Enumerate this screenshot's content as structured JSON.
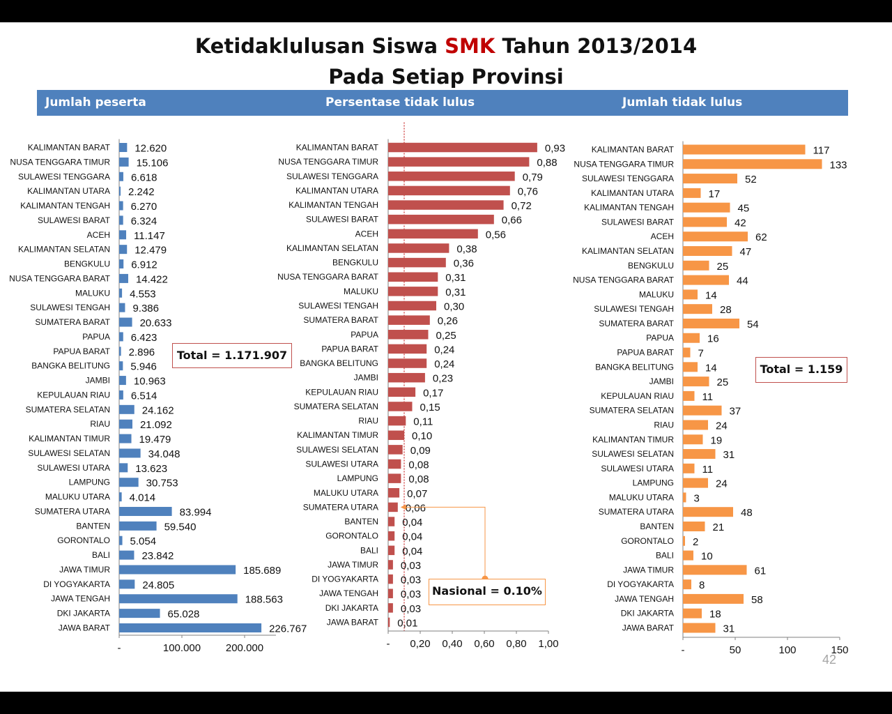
{
  "title": {
    "line1_pre": "Ketidaklulusan Siswa ",
    "line1_accent": "SMK",
    "line1_post": " Tahun 2013/2014",
    "line2": "Pada Setiap Provinsi"
  },
  "headers": {
    "col1": "Jumlah peserta",
    "col2": "Persentase tidak lulus",
    "col3": "Jumlah tidak lulus"
  },
  "boxes": {
    "total_peserta": "Total =  1.171.907",
    "nasional": "Nasional = 0.10%",
    "total_tidak_lulus": "Total = 1.159"
  },
  "page_number": "42",
  "colors": {
    "blue": "#4f81bd",
    "red": "#c0504d",
    "orange": "#f79646",
    "header": "#4f81bd",
    "accent": "#c00000",
    "nasional_line": "#c00000",
    "callout": "#f79646"
  },
  "chart_data": [
    {
      "type": "bar",
      "orientation": "horizontal",
      "title": "Jumlah peserta",
      "categories": [
        "KALIMANTAN BARAT",
        "NUSA TENGGARA TIMUR",
        "SULAWESI TENGGARA",
        "KALIMANTAN UTARA",
        "KALIMANTAN TENGAH",
        "SULAWESI BARAT",
        "ACEH",
        "KALIMANTAN SELATAN",
        "BENGKULU",
        "NUSA TENGGARA BARAT",
        "MALUKU",
        "SULAWESI TENGAH",
        "SUMATERA BARAT",
        "PAPUA",
        "PAPUA BARAT",
        "BANGKA BELITUNG",
        "JAMBI",
        "KEPULAUAN RIAU",
        "SUMATERA SELATAN",
        "RIAU",
        "KALIMANTAN TIMUR",
        "SULAWESI SELATAN",
        "SULAWESI UTARA",
        "LAMPUNG",
        "MALUKU UTARA",
        "SUMATERA UTARA",
        "BANTEN",
        "GORONTALO",
        "BALI",
        "JAWA TIMUR",
        "DI YOGYAKARTA",
        "JAWA TENGAH",
        "DKI JAKARTA",
        "JAWA BARAT"
      ],
      "values": [
        12620,
        15106,
        6618,
        2242,
        6270,
        6324,
        11147,
        12479,
        6912,
        14422,
        4553,
        9386,
        20633,
        6423,
        2896,
        5946,
        10963,
        6514,
        24162,
        21092,
        19479,
        34048,
        13623,
        30753,
        4014,
        83994,
        59540,
        5054,
        23842,
        185689,
        24805,
        188563,
        65028,
        226767
      ],
      "labels": [
        "12.620",
        "15.106",
        "6.618",
        "2.242",
        "6.270",
        "6.324",
        "11.147",
        "12.479",
        "6.912",
        "14.422",
        "4.553",
        "9.386",
        "20.633",
        "6.423",
        "2.896",
        "5.946",
        "10.963",
        "6.514",
        "24.162",
        "21.092",
        "19.479",
        "34.048",
        "13.623",
        "30.753",
        "4.014",
        "83.994",
        "59.540",
        "5.054",
        "23.842",
        "185.689",
        "24.805",
        "188.563",
        "65.028",
        "226.767"
      ],
      "xlim": [
        0,
        250000
      ],
      "ticks": [
        0,
        100000,
        200000
      ],
      "tick_labels": [
        "-",
        "100.000",
        "200.000"
      ]
    },
    {
      "type": "bar",
      "orientation": "horizontal",
      "title": "Persentase tidak lulus",
      "categories": [
        "KALIMANTAN BARAT",
        "NUSA TENGGARA TIMUR",
        "SULAWESI TENGGARA",
        "KALIMANTAN UTARA",
        "KALIMANTAN TENGAH",
        "SULAWESI BARAT",
        "ACEH",
        "KALIMANTAN SELATAN",
        "BENGKULU",
        "NUSA TENGGARA BARAT",
        "MALUKU",
        "SULAWESI TENGAH",
        "SUMATERA BARAT",
        "PAPUA",
        "PAPUA BARAT",
        "BANGKA BELITUNG",
        "JAMBI",
        "KEPULAUAN RIAU",
        "SUMATERA SELATAN",
        "RIAU",
        "KALIMANTAN TIMUR",
        "SULAWESI SELATAN",
        "SULAWESI UTARA",
        "LAMPUNG",
        "MALUKU UTARA",
        "SUMATERA UTARA",
        "BANTEN",
        "GORONTALO",
        "BALI",
        "JAWA TIMUR",
        "DI YOGYAKARTA",
        "JAWA TENGAH",
        "DKI JAKARTA",
        "JAWA BARAT"
      ],
      "values": [
        0.93,
        0.88,
        0.79,
        0.76,
        0.72,
        0.66,
        0.56,
        0.38,
        0.36,
        0.31,
        0.31,
        0.3,
        0.26,
        0.25,
        0.24,
        0.24,
        0.23,
        0.17,
        0.15,
        0.11,
        0.1,
        0.09,
        0.08,
        0.08,
        0.07,
        0.06,
        0.04,
        0.04,
        0.04,
        0.03,
        0.03,
        0.03,
        0.03,
        0.01
      ],
      "labels": [
        "0,93",
        "0,88",
        "0,79",
        "0,76",
        "0,72",
        "0,66",
        "0,56",
        "0,38",
        "0,36",
        "0,31",
        "0,31",
        "0,30",
        "0,26",
        "0,25",
        "0,24",
        "0,24",
        "0,23",
        "0,17",
        "0,15",
        "0,11",
        "0,10",
        "0,09",
        "0,08",
        "0,08",
        "0,07",
        "0,06",
        "0,04",
        "0,04",
        "0,04",
        "0,03",
        "0,03",
        "0,03",
        "0,03",
        "0,01"
      ],
      "xlim": [
        0,
        1.0
      ],
      "ticks": [
        0,
        0.2,
        0.4,
        0.6,
        0.8,
        1.0
      ],
      "tick_labels": [
        "-",
        "0,20",
        "0,40",
        "0,60",
        "0,80",
        "1,00"
      ],
      "reference_line": {
        "value": 0.1,
        "label": "Nasional = 0.10%"
      },
      "annotation": {
        "points_to": "SUMATERA UTARA"
      }
    },
    {
      "type": "bar",
      "orientation": "horizontal",
      "title": "Jumlah tidak lulus",
      "categories": [
        "KALIMANTAN BARAT",
        "NUSA TENGGARA TIMUR",
        "SULAWESI TENGGARA",
        "KALIMANTAN UTARA",
        "KALIMANTAN TENGAH",
        "SULAWESI BARAT",
        "ACEH",
        "KALIMANTAN SELATAN",
        "BENGKULU",
        "NUSA TENGGARA BARAT",
        "MALUKU",
        "SULAWESI TENGAH",
        "SUMATERA BARAT",
        "PAPUA",
        "PAPUA BARAT",
        "BANGKA BELITUNG",
        "JAMBI",
        "KEPULAUAN RIAU",
        "SUMATERA SELATAN",
        "RIAU",
        "KALIMANTAN TIMUR",
        "SULAWESI SELATAN",
        "SULAWESI UTARA",
        "LAMPUNG",
        "MALUKU UTARA",
        "SUMATERA UTARA",
        "BANTEN",
        "GORONTALO",
        "BALI",
        "JAWA TIMUR",
        "DI YOGYAKARTA",
        "JAWA TENGAH",
        "DKI JAKARTA",
        "JAWA BARAT"
      ],
      "values": [
        117,
        133,
        52,
        17,
        45,
        42,
        62,
        47,
        25,
        44,
        14,
        28,
        54,
        16,
        7,
        14,
        25,
        11,
        37,
        24,
        19,
        31,
        11,
        24,
        3,
        48,
        21,
        2,
        10,
        61,
        8,
        58,
        18,
        31
      ],
      "labels": [
        "117",
        "133",
        "52",
        "17",
        "45",
        "42",
        "62",
        "47",
        "25",
        "44",
        "14",
        "28",
        "54",
        "16",
        "7",
        "14",
        "25",
        "11",
        "37",
        "24",
        "19",
        "31",
        "11",
        "24",
        "3",
        "48",
        "21",
        "2",
        "10",
        "61",
        "8",
        "58",
        "18",
        "31"
      ],
      "xlim": [
        0,
        150
      ],
      "ticks": [
        0,
        50,
        100,
        150
      ],
      "tick_labels": [
        "-",
        "50",
        "100",
        "150"
      ]
    }
  ]
}
